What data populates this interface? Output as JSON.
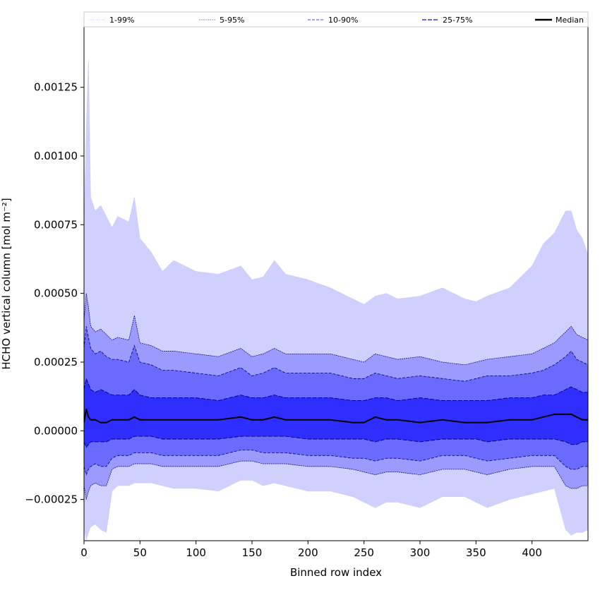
{
  "chart_data": {
    "type": "area",
    "xlabel": "Binned row index",
    "ylabel": "HCHO vertical column [mol m⁻²]",
    "xlim": [
      0,
      450
    ],
    "ylim": [
      -0.0004,
      0.00147
    ],
    "xticks": [
      0,
      50,
      100,
      150,
      200,
      250,
      300,
      350,
      400
    ],
    "xtick_labels": [
      "0",
      "50",
      "100",
      "150",
      "200",
      "250",
      "300",
      "350",
      "400"
    ],
    "yticks": [
      -0.00025,
      0.0,
      0.00025,
      0.0005,
      0.00075,
      0.001,
      0.00125
    ],
    "ytick_labels": [
      "−0.00025",
      "0.00000",
      "0.00025",
      "0.00050",
      "0.00075",
      "0.00100",
      "0.00125"
    ],
    "legend_position": "top (full width)",
    "x": [
      0,
      2,
      4,
      6,
      10,
      15,
      20,
      25,
      30,
      40,
      45,
      50,
      60,
      70,
      80,
      100,
      120,
      140,
      150,
      160,
      170,
      180,
      200,
      220,
      240,
      250,
      260,
      270,
      280,
      300,
      320,
      340,
      350,
      360,
      380,
      400,
      410,
      420,
      430,
      435,
      440,
      445,
      450
    ],
    "series": [
      {
        "name": "1-99%",
        "color": "#d0d0ff",
        "lower": [
          -0.00035,
          -0.0004,
          -0.00037,
          -0.00035,
          -0.00034,
          -0.00036,
          -0.00037,
          -0.00022,
          -0.0002,
          -0.0002,
          -0.00019,
          -0.00019,
          -0.00019,
          -0.0002,
          -0.00021,
          -0.00021,
          -0.00022,
          -0.00018,
          -0.00018,
          -0.0002,
          -0.00019,
          -0.0002,
          -0.00022,
          -0.00022,
          -0.00024,
          -0.00026,
          -0.00028,
          -0.00026,
          -0.00026,
          -0.00028,
          -0.00024,
          -0.00024,
          -0.00026,
          -0.00028,
          -0.00025,
          -0.00023,
          -0.00022,
          -0.00021,
          -0.00036,
          -0.00038,
          -0.00037,
          -0.00037,
          -0.00036
        ],
        "upper": [
          0.00075,
          0.0011,
          0.00135,
          0.00085,
          0.0008,
          0.00082,
          0.00078,
          0.00074,
          0.00078,
          0.00076,
          0.00085,
          0.0007,
          0.00065,
          0.00058,
          0.00062,
          0.00058,
          0.00057,
          0.0006,
          0.00055,
          0.00056,
          0.00062,
          0.00057,
          0.00055,
          0.00052,
          0.00048,
          0.00046,
          0.00049,
          0.0005,
          0.00048,
          0.00049,
          0.00052,
          0.00048,
          0.00047,
          0.00049,
          0.00052,
          0.0006,
          0.00068,
          0.00072,
          0.0008,
          0.0008,
          0.00073,
          0.0007,
          0.00064
        ]
      },
      {
        "name": "5-95%",
        "color": "#9b9bff",
        "lower": [
          -0.0002,
          -0.00025,
          -0.00022,
          -0.0002,
          -0.00019,
          -0.0002,
          -0.0002,
          -0.00014,
          -0.00013,
          -0.00013,
          -0.00012,
          -0.00012,
          -0.00012,
          -0.00013,
          -0.00013,
          -0.00013,
          -0.00013,
          -0.00011,
          -0.00011,
          -0.00012,
          -0.00012,
          -0.00012,
          -0.00013,
          -0.00013,
          -0.00014,
          -0.00015,
          -0.00016,
          -0.00015,
          -0.00015,
          -0.00016,
          -0.00014,
          -0.00014,
          -0.00015,
          -0.00016,
          -0.00014,
          -0.00013,
          -0.00013,
          -0.00013,
          -0.0002,
          -0.00021,
          -0.00021,
          -0.0002,
          -0.0002
        ],
        "upper": [
          0.0004,
          0.0005,
          0.00045,
          0.00038,
          0.00036,
          0.00037,
          0.00035,
          0.00033,
          0.00034,
          0.00033,
          0.00042,
          0.00032,
          0.00031,
          0.00029,
          0.00029,
          0.00028,
          0.00027,
          0.0003,
          0.00027,
          0.00028,
          0.0003,
          0.00028,
          0.00028,
          0.00028,
          0.00026,
          0.00025,
          0.00028,
          0.00027,
          0.00026,
          0.00027,
          0.00025,
          0.00024,
          0.00025,
          0.00026,
          0.00027,
          0.00028,
          0.0003,
          0.00032,
          0.00036,
          0.00038,
          0.00035,
          0.00034,
          0.00033
        ]
      },
      {
        "name": "10-90%",
        "color": "#6a6aff",
        "lower": [
          -0.00013,
          -0.00016,
          -0.00014,
          -0.00013,
          -0.00012,
          -0.00013,
          -0.00013,
          -0.0001,
          -9e-05,
          -9e-05,
          -8e-05,
          -8e-05,
          -8e-05,
          -9e-05,
          -9e-05,
          -9e-05,
          -9e-05,
          -7e-05,
          -7e-05,
          -8e-05,
          -8e-05,
          -8e-05,
          -9e-05,
          -9e-05,
          -0.0001,
          -0.0001,
          -0.00011,
          -0.0001,
          -0.0001,
          -0.00011,
          -9e-05,
          -9e-05,
          -0.0001,
          -0.00011,
          -0.0001,
          -9e-05,
          -9e-05,
          -9e-05,
          -0.00013,
          -0.00014,
          -0.00014,
          -0.00013,
          -0.00013
        ],
        "upper": [
          0.0003,
          0.00038,
          0.00034,
          0.0003,
          0.00028,
          0.00029,
          0.00027,
          0.00026,
          0.00026,
          0.00025,
          0.00031,
          0.00025,
          0.00024,
          0.00022,
          0.00022,
          0.00021,
          0.0002,
          0.00023,
          0.0002,
          0.00021,
          0.00023,
          0.00021,
          0.00021,
          0.00021,
          0.00019,
          0.00019,
          0.00021,
          0.0002,
          0.00019,
          0.0002,
          0.00019,
          0.00018,
          0.00019,
          0.0002,
          0.0002,
          0.00021,
          0.00022,
          0.00024,
          0.00027,
          0.00029,
          0.00026,
          0.00025,
          0.00024
        ]
      },
      {
        "name": "25-75%",
        "color": "#2e2eff",
        "lower": [
          -4e-05,
          -6e-05,
          -5e-05,
          -4e-05,
          -4e-05,
          -4e-05,
          -4e-05,
          -3e-05,
          -3e-05,
          -3e-05,
          -2e-05,
          -2e-05,
          -2e-05,
          -3e-05,
          -3e-05,
          -3e-05,
          -3e-05,
          -2e-05,
          -2e-05,
          -2e-05,
          -2e-05,
          -2e-05,
          -3e-05,
          -3e-05,
          -3e-05,
          -3e-05,
          -4e-05,
          -3e-05,
          -3e-05,
          -4e-05,
          -3e-05,
          -3e-05,
          -3e-05,
          -4e-05,
          -3e-05,
          -3e-05,
          -3e-05,
          -3e-05,
          -4e-05,
          -5e-05,
          -5e-05,
          -4e-05,
          -4e-05
        ],
        "upper": [
          0.00015,
          0.00019,
          0.00017,
          0.00015,
          0.00014,
          0.00015,
          0.00014,
          0.00013,
          0.00013,
          0.00013,
          0.00015,
          0.00013,
          0.00012,
          0.00012,
          0.00012,
          0.00012,
          0.00011,
          0.00013,
          0.00012,
          0.00012,
          0.00013,
          0.00012,
          0.00012,
          0.00012,
          0.00011,
          0.00011,
          0.00012,
          0.00012,
          0.00011,
          0.00012,
          0.00011,
          0.00011,
          0.00011,
          0.00011,
          0.00012,
          0.00012,
          0.00013,
          0.00013,
          0.00015,
          0.00016,
          0.00015,
          0.00014,
          0.00014
        ]
      },
      {
        "name": "Median",
        "color": "#000000",
        "values": [
          3e-05,
          8e-05,
          5e-05,
          4e-05,
          4e-05,
          3e-05,
          3e-05,
          4e-05,
          4e-05,
          4e-05,
          5e-05,
          4e-05,
          4e-05,
          4e-05,
          4e-05,
          4e-05,
          4e-05,
          5e-05,
          4e-05,
          4e-05,
          5e-05,
          4e-05,
          4e-05,
          4e-05,
          3e-05,
          3e-05,
          5e-05,
          4e-05,
          4e-05,
          3e-05,
          4e-05,
          3e-05,
          3e-05,
          3e-05,
          4e-05,
          4e-05,
          5e-05,
          6e-05,
          6e-05,
          6e-05,
          5e-05,
          4e-05,
          4e-05
        ]
      }
    ]
  }
}
